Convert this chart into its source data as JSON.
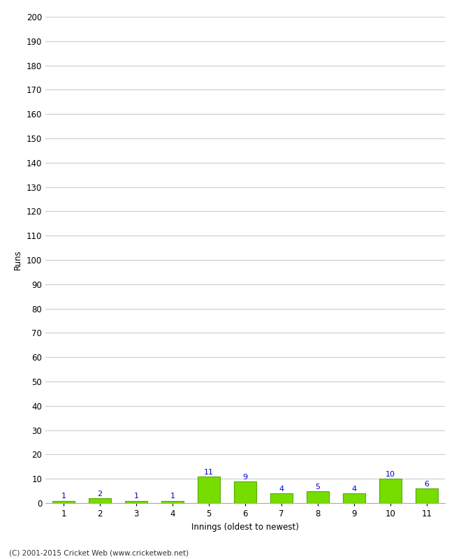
{
  "innings": [
    1,
    2,
    3,
    4,
    5,
    6,
    7,
    8,
    9,
    10,
    11
  ],
  "runs": [
    1,
    2,
    1,
    1,
    11,
    9,
    4,
    5,
    4,
    10,
    6
  ],
  "bar_color": "#77dd00",
  "bar_edge_color": "#55aa00",
  "label_color": "#0000cc",
  "xlabel": "Innings (oldest to newest)",
  "ylabel": "Runs",
  "ylim": [
    0,
    200
  ],
  "yticks": [
    0,
    10,
    20,
    30,
    40,
    50,
    60,
    70,
    80,
    90,
    100,
    110,
    120,
    130,
    140,
    150,
    160,
    170,
    180,
    190,
    200
  ],
  "footer": "(C) 2001-2015 Cricket Web (www.cricketweb.net)",
  "background_color": "#ffffff",
  "grid_color": "#cccccc",
  "label_fontsize": 8,
  "axis_fontsize": 8.5,
  "footer_fontsize": 7.5
}
